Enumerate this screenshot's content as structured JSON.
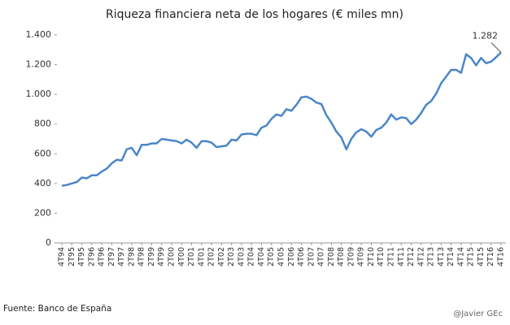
{
  "chart_data": {
    "type": "line",
    "title": "Riqueza financiera neta de los hogares (€ miles mn)",
    "categories": [
      "4T94",
      null,
      "2T95",
      null,
      "4T95",
      null,
      "2T96",
      null,
      "4T96",
      null,
      "2T97",
      null,
      "4T97",
      null,
      "2T98",
      null,
      "4T98",
      null,
      "2T99",
      null,
      "4T99",
      null,
      "2T00",
      null,
      "4T00",
      null,
      "2T01",
      null,
      "4T01",
      null,
      "2T02",
      null,
      "4T02",
      null,
      "2T03",
      null,
      "4T03",
      null,
      "2T04",
      null,
      "4T04",
      null,
      "2T05",
      null,
      "4T05",
      null,
      "2T06",
      null,
      "4T06",
      null,
      "2T07",
      null,
      "4T07",
      null,
      "2T08",
      null,
      "4T08",
      null,
      "2T09",
      null,
      "4T09",
      null,
      "2T10",
      null,
      "4T10",
      null,
      "2T11",
      null,
      "4T11",
      null,
      "2T12",
      null,
      "4T12",
      null,
      "2T13",
      null,
      "4T13",
      null,
      "2T14",
      null,
      "4T14",
      null,
      "2T15",
      null,
      "4T15",
      null,
      "2T16",
      null,
      "4T16"
    ],
    "values": [
      385,
      390,
      400,
      410,
      440,
      435,
      455,
      455,
      480,
      500,
      535,
      560,
      555,
      630,
      640,
      590,
      660,
      660,
      670,
      670,
      700,
      695,
      690,
      685,
      670,
      695,
      675,
      640,
      685,
      685,
      675,
      645,
      650,
      655,
      695,
      690,
      730,
      735,
      735,
      725,
      775,
      790,
      835,
      865,
      855,
      900,
      890,
      930,
      980,
      985,
      970,
      945,
      935,
      860,
      810,
      750,
      710,
      630,
      700,
      745,
      765,
      750,
      715,
      760,
      775,
      810,
      865,
      830,
      845,
      840,
      800,
      830,
      875,
      930,
      955,
      1005,
      1075,
      1120,
      1165,
      1165,
      1145,
      1270,
      1245,
      1195,
      1245,
      1210,
      1220,
      1250,
      1282
    ],
    "value_labels": [
      null,
      null,
      null,
      null,
      null,
      null,
      null,
      null,
      null,
      null,
      null,
      null,
      null,
      null,
      null,
      null,
      null,
      null,
      null,
      null,
      null,
      null,
      null,
      null,
      null,
      null,
      null,
      null,
      null,
      null,
      null,
      null,
      null,
      null,
      null,
      null,
      null,
      null,
      null,
      null,
      null,
      null,
      null,
      null,
      null,
      null,
      null,
      null,
      null,
      null,
      null,
      null,
      null,
      null,
      null,
      null,
      null,
      null,
      null,
      null,
      null,
      null,
      null,
      null,
      null,
      null,
      null,
      null,
      null,
      null,
      null,
      null,
      null,
      null,
      null,
      null,
      null,
      null,
      null,
      null,
      null,
      null,
      null,
      null,
      null,
      null,
      null,
      null,
      "1.282"
    ],
    "color": "#4a86c8",
    "ylim": [
      0,
      1400
    ],
    "yticks": [
      0,
      200,
      400,
      600,
      800,
      {
        "value": 1000,
        "label": "1.000"
      },
      {
        "value": 1200,
        "label": "1.200"
      },
      {
        "value": 1400,
        "label": "1.400"
      }
    ],
    "grid": false,
    "source": "Fuente: Banco de España",
    "credit": "@Javier GEc"
  }
}
